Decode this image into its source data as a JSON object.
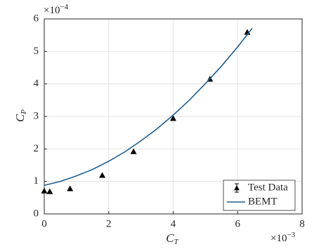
{
  "chart_data": {
    "type": "line",
    "x_label": {
      "text": "C",
      "sub": "T"
    },
    "y_label": {
      "text": "C",
      "sub": "P"
    },
    "x_multiplier": {
      "base": "×10",
      "exponent": "−3"
    },
    "y_multiplier": {
      "base": "×10",
      "exponent": "−4"
    },
    "xlim": [
      0,
      8
    ],
    "xticks": [
      0,
      2,
      4,
      6,
      8
    ],
    "ylim": [
      0,
      6
    ],
    "yticks": [
      0,
      1,
      2,
      3,
      4,
      5,
      6
    ],
    "grid": true,
    "legend": "lower right",
    "series": [
      {
        "name": "Test Data",
        "type": "scatter",
        "marker": "triangle",
        "color": "#000000",
        "x": [
          0,
          0.17,
          0.8,
          1.8,
          2.77,
          4.0,
          5.14,
          6.3
        ],
        "values": [
          0.71,
          0.69,
          0.78,
          1.19,
          1.92,
          2.94,
          4.15,
          5.59
        ]
      },
      {
        "name": "BEMT",
        "type": "line",
        "color": "#1b5f91",
        "x": [
          0,
          0.5,
          1,
          1.5,
          2,
          2.5,
          3,
          3.5,
          4,
          4.5,
          5,
          5.5,
          6,
          6.45
        ],
        "values": [
          0.88,
          1.0,
          1.17,
          1.37,
          1.62,
          1.91,
          2.25,
          2.62,
          3.04,
          3.5,
          4.01,
          4.55,
          5.14,
          5.71
        ]
      }
    ]
  }
}
